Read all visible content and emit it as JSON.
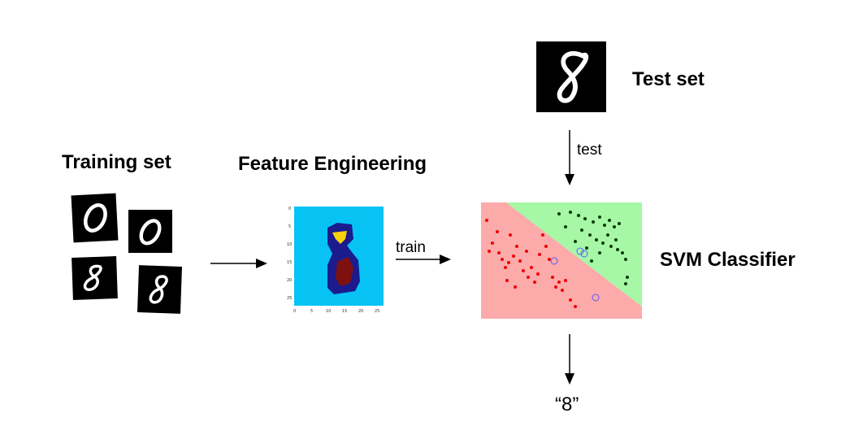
{
  "labels": {
    "training_set": "Training set",
    "feature_engineering": "Feature Engineering",
    "test_set": "Test set",
    "svm_classifier": "SVM Classifier",
    "train": "train",
    "test": "test",
    "output": "“8”"
  },
  "training_digits": [
    "0",
    "0",
    "8",
    "8"
  ],
  "test_digit": "8",
  "feature_map": {
    "y_ticks": [
      "0",
      "5",
      "10",
      "15",
      "20",
      "25"
    ],
    "x_ticks": [
      "0",
      "5",
      "10",
      "15",
      "20",
      "25"
    ],
    "colors": {
      "background": "#06c3f4",
      "body": "#1c1b8e",
      "top_blob": "#f7d20c",
      "inner_blob": "#7f1010"
    }
  },
  "svm": {
    "class_a_color": "#f00000",
    "class_b_color": "#0b3a0b",
    "region_a_color": "#fdaaaa",
    "region_b_color": "#a6f7a6",
    "support_vector_ring_color": "#5a5aff"
  },
  "colors": {
    "arrow": "#000000",
    "digit_tile": "#000000",
    "digit_stroke": "#ffffff"
  }
}
